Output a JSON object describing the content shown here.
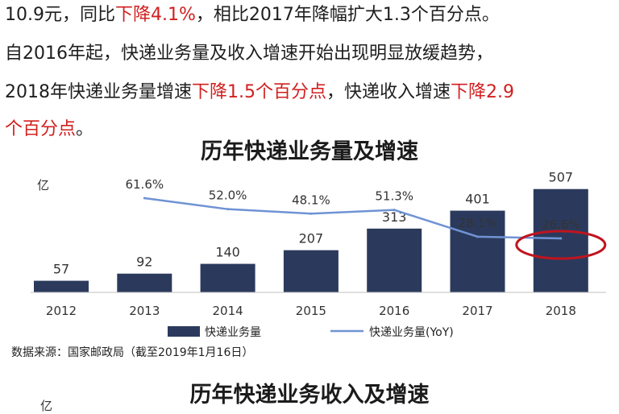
{
  "text": {
    "line1_a": "10.9元，同比",
    "line1_red": "下降4.1%",
    "line1_b": "，相比2017年降幅扩大1.3个百分点。",
    "line2": "自2016年起，快递业务量及收入增速开始出现明显放缓趋势，",
    "line3_a": "2018年快递业务量增速",
    "line3_red1": "下降1.5个百分点",
    "line3_b": "，快递收入增速",
    "line3_red2": "下降2.9",
    "line4_red": "个百分点",
    "line4_b": "。"
  },
  "chart_data": [
    {
      "type": "bar+line",
      "title": "历年快递业务量及增速",
      "unit_label": "亿",
      "categories": [
        "2012",
        "2013",
        "2014",
        "2015",
        "2016",
        "2017",
        "2018"
      ],
      "series": [
        {
          "name": "快递业务量",
          "kind": "bar",
          "values": [
            57,
            92,
            140,
            207,
            313,
            401,
            507
          ],
          "value_labels": [
            "57",
            "92",
            "140",
            "207",
            "313",
            "401",
            "507"
          ],
          "color": "#2b3a5c"
        },
        {
          "name": "快递业务量(YoY)",
          "kind": "line",
          "x": [
            "2013",
            "2014",
            "2015",
            "2016",
            "2017",
            "2018"
          ],
          "values": [
            61.6,
            52.0,
            48.1,
            51.3,
            28.1,
            26.6
          ],
          "value_labels": [
            "61.6%",
            "52.0%",
            "48.1%",
            "51.3%",
            "28.1%",
            "26.6%"
          ],
          "color": "#6f93d4"
        }
      ],
      "annotation": {
        "kind": "ellipse",
        "target": "2018 YoY",
        "color": "#c0141e"
      },
      "legend_position": "bottom",
      "grid": false,
      "source": "数据来源：国家邮政局（截至2019年1月16日）"
    },
    {
      "type": "bar+line",
      "title": "历年快递业务收入及增速",
      "unit_label": "亿"
    }
  ]
}
